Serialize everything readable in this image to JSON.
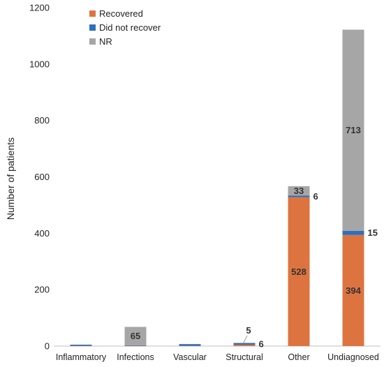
{
  "chart_data": {
    "type": "bar",
    "stacked": true,
    "categories": [
      "Inflammatory",
      "Infections",
      "Vascular",
      "Structural",
      "Other",
      "Undiagnosed"
    ],
    "series": [
      {
        "name": "Recovered",
        "color": "#dd7440",
        "values": [
          1,
          1,
          1,
          5,
          528,
          394
        ]
      },
      {
        "name": "Did not recover",
        "color": "#2e6fba",
        "values": [
          4,
          2,
          6,
          6,
          6,
          15
        ]
      },
      {
        "name": "NR",
        "color": "#a6a6a6",
        "values": [
          0,
          65,
          0,
          0,
          33,
          713
        ]
      }
    ],
    "data_labels": [
      {
        "category": "Infections",
        "series": "NR",
        "text": "65",
        "placement": "inside"
      },
      {
        "category": "Structural",
        "series": "Recovered",
        "text": "5",
        "placement": "above-callout"
      },
      {
        "category": "Structural",
        "series": "Did not recover",
        "text": "6",
        "placement": "right"
      },
      {
        "category": "Other",
        "series": "NR",
        "text": "33",
        "placement": "inside"
      },
      {
        "category": "Other",
        "series": "Did not recover",
        "text": "6",
        "placement": "right"
      },
      {
        "category": "Other",
        "series": "Recovered",
        "text": "528",
        "placement": "inside"
      },
      {
        "category": "Undiagnosed",
        "series": "NR",
        "text": "713",
        "placement": "inside"
      },
      {
        "category": "Undiagnosed",
        "series": "Did not recover",
        "text": "15",
        "placement": "right"
      },
      {
        "category": "Undiagnosed",
        "series": "Recovered",
        "text": "394",
        "placement": "inside"
      }
    ],
    "ylabel": "Number of patients",
    "xlabel": "",
    "title": "",
    "ylim": [
      0,
      1200
    ],
    "yticks": [
      0,
      200,
      400,
      600,
      800,
      1000,
      1200
    ],
    "grid": false,
    "legend": "top-left"
  }
}
